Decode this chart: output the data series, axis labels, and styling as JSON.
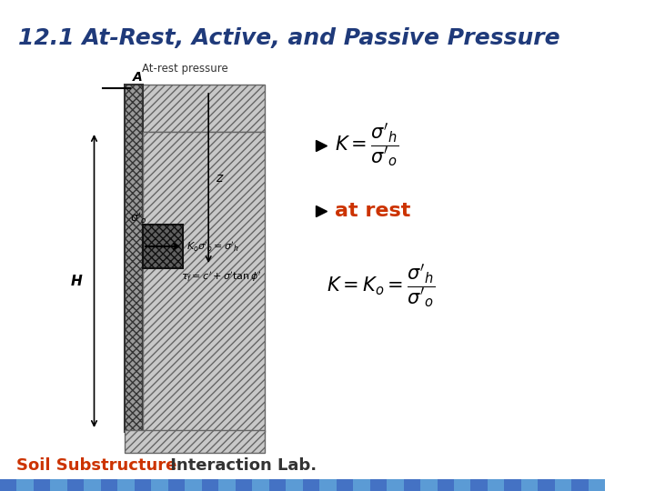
{
  "title": "12.1 At-Rest, Active, and Passive Pressure",
  "title_color": "#1F3A7A",
  "title_fontsize": 18,
  "title_fontstyle": "italic",
  "title_fontweight": "bold",
  "bg_color": "#FFFFFF",
  "footer_color_1": "#CC3300",
  "footer_color_2": "#333333",
  "diagram_label": "At-rest pressure",
  "at_rest_text": "at rest",
  "at_rest_color": "#CC3300"
}
